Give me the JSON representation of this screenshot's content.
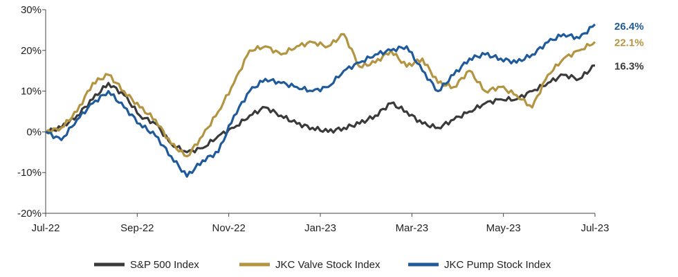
{
  "chart_data": {
    "type": "line",
    "title": "",
    "xlabel": "",
    "ylabel": "",
    "x_ticks": [
      "Jul-22",
      "Sep-22",
      "Nov-22",
      "Jan-23",
      "Mar-23",
      "May-23",
      "Jul-23"
    ],
    "y_ticks": [
      "30%",
      "20%",
      "10%",
      "0%",
      "-10%",
      "-20%"
    ],
    "ylim": [
      -20,
      30
    ],
    "y_unit": "%",
    "grid": false,
    "legend_position": "bottom",
    "series": [
      {
        "name": "S&P 500 Index",
        "color": "#3a3a3a",
        "end_label": "16.3%",
        "x": [
          "Jul-22",
          "Jul-22",
          "Aug-22",
          "Aug-22",
          "Aug-22",
          "Aug-22",
          "Sep-22",
          "Sep-22",
          "Sep-22",
          "Oct-22",
          "Oct-22",
          "Oct-22",
          "Nov-22",
          "Nov-22",
          "Nov-22",
          "Dec-22",
          "Dec-22",
          "Dec-22",
          "Jan-23",
          "Jan-23",
          "Jan-23",
          "Feb-23",
          "Feb-23",
          "Mar-23",
          "Mar-23",
          "Mar-23",
          "Apr-23",
          "Apr-23",
          "May-23",
          "May-23",
          "May-23",
          "Jun-23",
          "Jun-23",
          "Jun-23",
          "Jul-23",
          "Jul-23"
        ],
        "values": [
          0,
          1,
          4,
          8,
          12,
          9,
          4,
          2,
          -3,
          -5,
          -4,
          -1,
          1,
          4,
          6,
          4,
          2,
          1,
          0,
          1,
          2,
          4,
          7,
          5,
          2,
          1,
          3,
          5,
          7,
          8,
          8,
          10,
          12,
          14,
          13,
          16.3
        ]
      },
      {
        "name": "JKC Valve Stock Index",
        "color": "#b39440",
        "end_label": "22.1%",
        "x": [
          "Jul-22",
          "Jul-22",
          "Aug-22",
          "Aug-22",
          "Aug-22",
          "Aug-22",
          "Sep-22",
          "Sep-22",
          "Sep-22",
          "Oct-22",
          "Oct-22",
          "Oct-22",
          "Nov-22",
          "Nov-22",
          "Nov-22",
          "Dec-22",
          "Dec-22",
          "Dec-22",
          "Jan-23",
          "Jan-23",
          "Jan-23",
          "Feb-23",
          "Feb-23",
          "Mar-23",
          "Mar-23",
          "Mar-23",
          "Apr-23",
          "Apr-23",
          "May-23",
          "May-23",
          "May-23",
          "Jun-23",
          "Jun-23",
          "Jun-23",
          "Jul-23",
          "Jul-23"
        ],
        "values": [
          0,
          1,
          5,
          12,
          14,
          10,
          6,
          3,
          -3,
          -6,
          -1,
          5,
          12,
          20,
          21,
          19,
          21,
          22,
          21,
          24,
          16,
          17,
          20,
          16,
          18,
          12,
          11,
          15,
          10,
          11,
          9,
          6,
          14,
          18,
          20,
          22.1
        ]
      },
      {
        "name": "JKC Pump Stock Index",
        "color": "#1f5a9a",
        "end_label": "26.4%",
        "x": [
          "Jul-22",
          "Jul-22",
          "Aug-22",
          "Aug-22",
          "Aug-22",
          "Aug-22",
          "Sep-22",
          "Sep-22",
          "Sep-22",
          "Oct-22",
          "Oct-22",
          "Oct-22",
          "Nov-22",
          "Nov-22",
          "Nov-22",
          "Dec-22",
          "Dec-22",
          "Dec-22",
          "Jan-23",
          "Jan-23",
          "Jan-23",
          "Feb-23",
          "Feb-23",
          "Mar-23",
          "Mar-23",
          "Mar-23",
          "Apr-23",
          "Apr-23",
          "May-23",
          "May-23",
          "May-23",
          "Jun-23",
          "Jun-23",
          "Jun-23",
          "Jul-23",
          "Jul-23"
        ],
        "values": [
          0,
          -2,
          3,
          7,
          10,
          6,
          2,
          -1,
          -6,
          -11,
          -7,
          -5,
          4,
          10,
          13,
          12,
          11,
          10,
          11,
          15,
          17,
          19,
          20,
          21,
          15,
          10,
          14,
          18,
          19,
          18,
          17,
          19,
          22,
          24,
          23,
          26.4
        ]
      }
    ]
  }
}
